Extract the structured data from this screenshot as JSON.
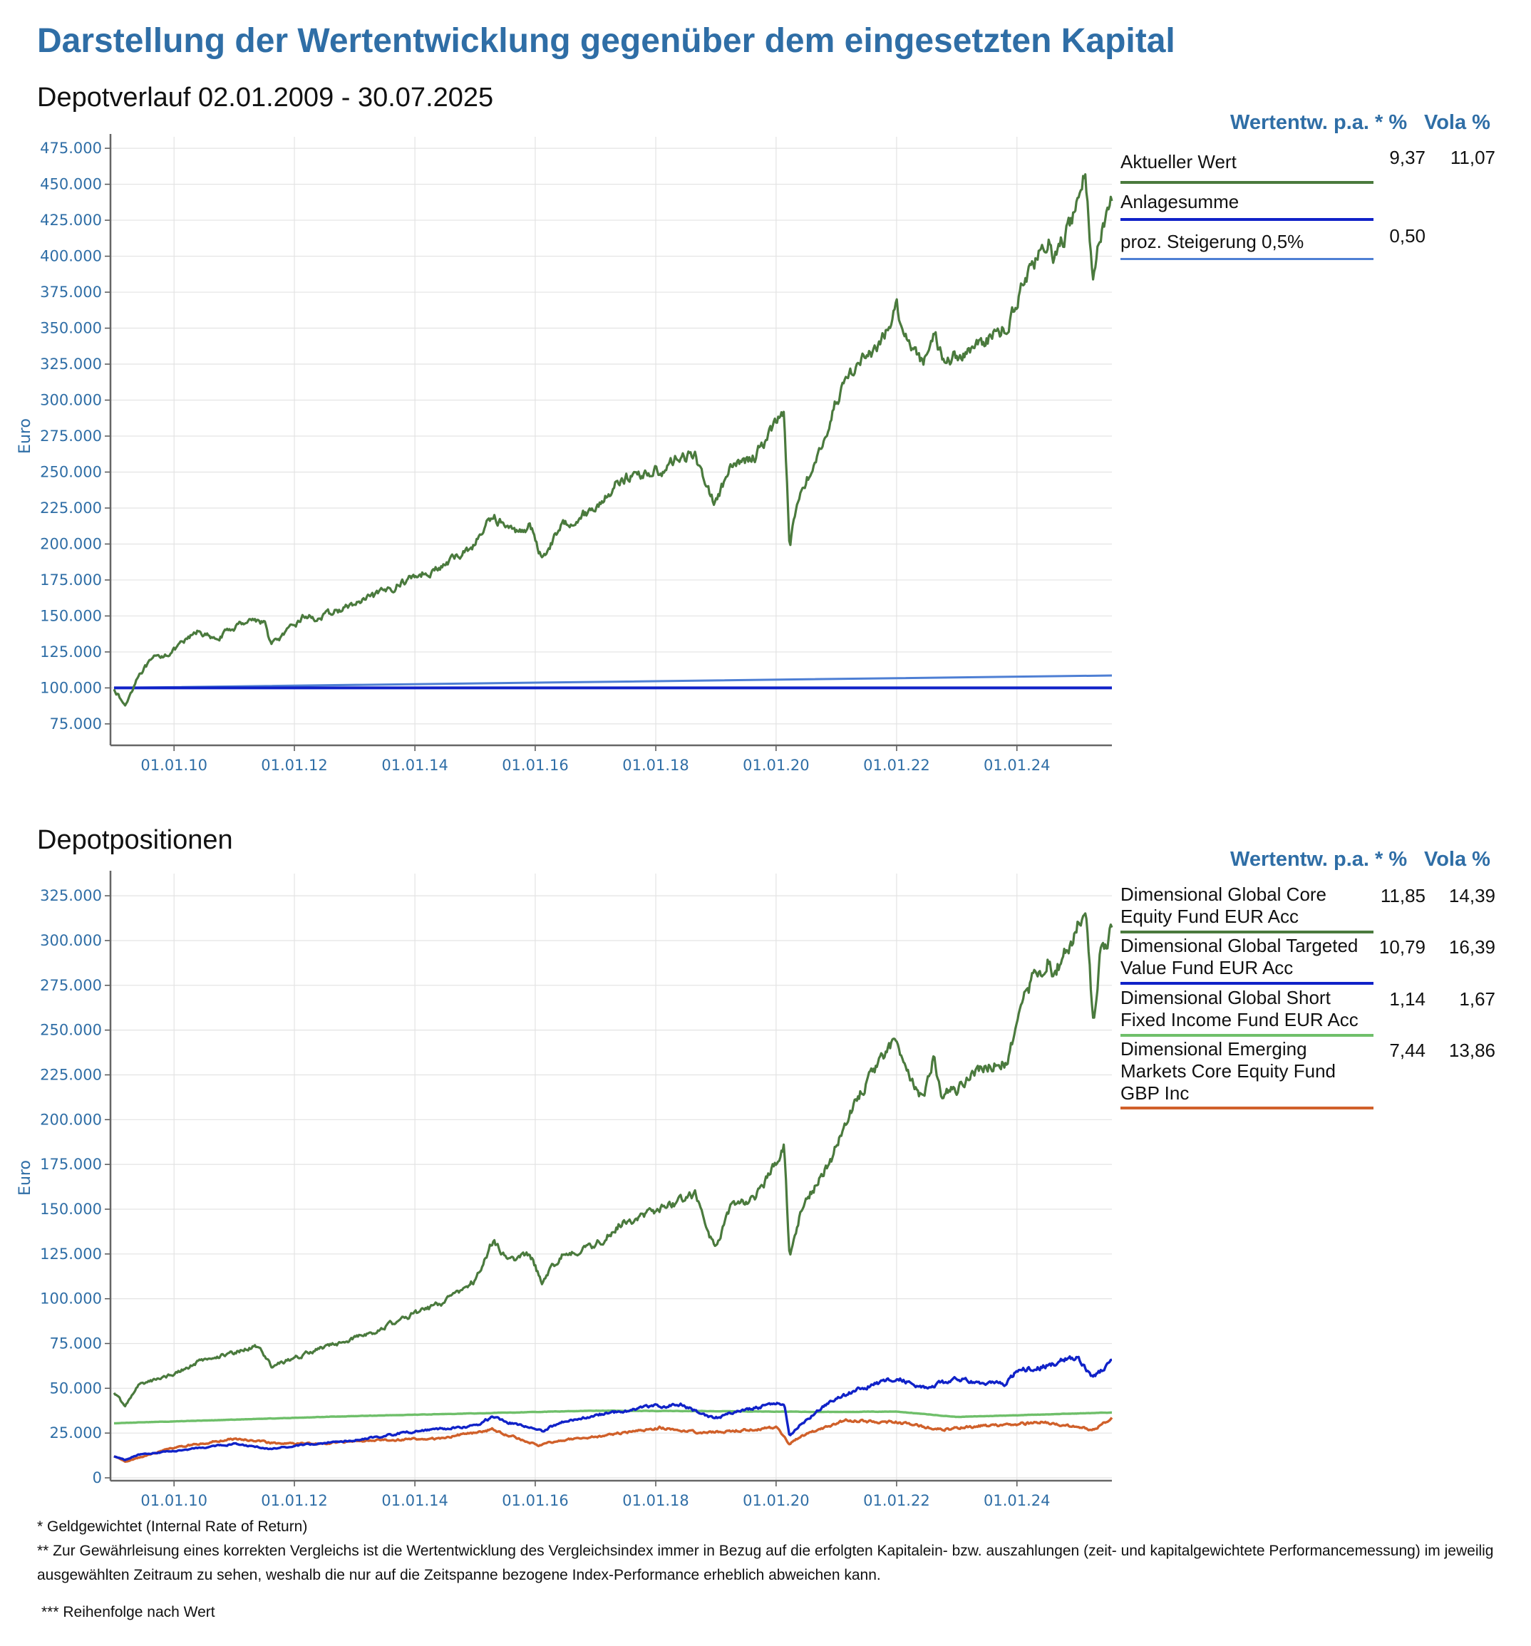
{
  "header": {
    "title": "Darstellung der Wertentwicklung gegenüber dem eingesetzten Kapital",
    "subtitle": "Depotverlauf 02.01.2009 - 30.07.2025",
    "section2_title": "Depotpositionen"
  },
  "legend_header": {
    "perf": "Wertentw. p.a. * %",
    "vola": "Vola %"
  },
  "chart_data": [
    {
      "type": "line",
      "title": "Depotverlauf 02.01.2009 - 30.07.2025",
      "ylabel": "Euro",
      "xlabel": "",
      "ylim": [
        70000,
        480000
      ],
      "xlim": [
        "2009-01-02",
        "2025-07-30"
      ],
      "x_ticks": [
        "01.01.10",
        "01.01.12",
        "01.01.14",
        "01.01.16",
        "01.01.18",
        "01.01.20",
        "01.01.22",
        "01.01.24"
      ],
      "y_ticks": [
        "75.000",
        "100.000",
        "125.000",
        "150.000",
        "175.000",
        "200.000",
        "225.000",
        "250.000",
        "275.000",
        "300.000",
        "325.000",
        "350.000",
        "375.000",
        "400.000",
        "425.000",
        "450.000",
        "475.000"
      ],
      "grid": true,
      "legend_position": "right",
      "series": [
        {
          "name": "Aktueller Wert",
          "color": "#4a7a3d",
          "perf": "9,37",
          "vola": "11,07",
          "x": [
            "2009-01-02",
            "2009-03-09",
            "2009-06-01",
            "2009-09-01",
            "2010-01-01",
            "2010-06-01",
            "2010-09-01",
            "2011-01-01",
            "2011-04-01",
            "2011-07-01",
            "2011-08-15",
            "2011-12-01",
            "2012-03-01",
            "2012-06-01",
            "2012-09-01",
            "2013-01-01",
            "2013-06-01",
            "2014-01-01",
            "2014-06-01",
            "2015-01-01",
            "2015-04-15",
            "2015-08-25",
            "2015-11-30",
            "2016-02-11",
            "2016-06-01",
            "2016-09-01",
            "2017-01-01",
            "2017-06-01",
            "2017-12-01",
            "2018-03-01",
            "2018-06-01",
            "2018-09-01",
            "2018-12-24",
            "2019-04-01",
            "2019-09-01",
            "2020-01-01",
            "2020-02-19",
            "2020-03-23",
            "2020-06-01",
            "2020-09-01",
            "2020-12-01",
            "2021-03-01",
            "2021-06-01",
            "2021-09-01",
            "2021-12-31",
            "2022-03-01",
            "2022-06-15",
            "2022-08-15",
            "2022-10-01",
            "2023-01-01",
            "2023-06-01",
            "2023-10-27",
            "2024-01-01",
            "2024-04-01",
            "2024-07-15",
            "2024-08-05",
            "2024-12-01",
            "2025-02-19",
            "2025-04-08",
            "2025-05-15",
            "2025-07-30"
          ],
          "y": [
            100000,
            87000,
            110000,
            120000,
            126000,
            140000,
            133000,
            142000,
            148000,
            146000,
            130000,
            140000,
            150000,
            148000,
            153000,
            158000,
            165000,
            178000,
            183000,
            200000,
            220000,
            208000,
            213000,
            190000,
            212000,
            218000,
            225000,
            245000,
            250000,
            252000,
            262000,
            260000,
            228000,
            252000,
            262000,
            285000,
            292000,
            200000,
            240000,
            255000,
            290000,
            315000,
            330000,
            332000,
            365000,
            345000,
            325000,
            350000,
            330000,
            330000,
            340000,
            350000,
            370000,
            395000,
            410000,
            395000,
            425000,
            460000,
            378000,
            415000,
            440000
          ]
        },
        {
          "name": "Anlagesumme",
          "color": "#1022c8",
          "perf": "",
          "vola": "",
          "x": [
            "2009-01-02",
            "2025-07-30"
          ],
          "y": [
            100000,
            100000
          ]
        },
        {
          "name": "proz. Steigerung 0,5%",
          "color": "#4e7fd4",
          "perf": "0,50",
          "vola": "",
          "x": [
            "2009-01-02",
            "2025-07-30"
          ],
          "y": [
            100000,
            108600
          ]
        }
      ]
    },
    {
      "type": "line",
      "title": "Depotpositionen",
      "ylabel": "Euro",
      "xlabel": "",
      "ylim": [
        0,
        335000
      ],
      "xlim": [
        "2009-01-02",
        "2025-07-30"
      ],
      "x_ticks": [
        "01.01.10",
        "01.01.12",
        "01.01.14",
        "01.01.16",
        "01.01.18",
        "01.01.20",
        "01.01.22",
        "01.01.24"
      ],
      "y_ticks": [
        "0",
        "25.000",
        "50.000",
        "75.000",
        "100.000",
        "125.000",
        "150.000",
        "175.000",
        "200.000",
        "225.000",
        "250.000",
        "275.000",
        "300.000",
        "325.000"
      ],
      "grid": true,
      "legend_position": "right",
      "series": [
        {
          "name": "Dimensional Global Core Equity Fund EUR Acc",
          "color": "#4a7a3d",
          "perf": "11,85",
          "vola": "14,39",
          "x": [
            "2009-01-02",
            "2009-03-09",
            "2009-06-01",
            "2010-01-01",
            "2010-06-01",
            "2011-01-01",
            "2011-06-01",
            "2011-08-15",
            "2012-01-01",
            "2012-06-01",
            "2013-01-01",
            "2013-06-01",
            "2014-01-01",
            "2014-06-01",
            "2015-01-01",
            "2015-04-15",
            "2015-08-25",
            "2015-11-30",
            "2016-02-11",
            "2016-06-01",
            "2017-01-01",
            "2017-06-01",
            "2017-12-01",
            "2018-06-01",
            "2018-09-01",
            "2018-12-24",
            "2019-04-01",
            "2019-09-01",
            "2020-01-01",
            "2020-02-19",
            "2020-03-23",
            "2020-06-01",
            "2020-12-01",
            "2021-03-01",
            "2021-06-01",
            "2021-12-31",
            "2022-03-01",
            "2022-06-15",
            "2022-08-15",
            "2022-10-01",
            "2023-01-01",
            "2023-06-01",
            "2023-10-27",
            "2024-01-01",
            "2024-04-01",
            "2024-07-15",
            "2024-08-05",
            "2024-12-01",
            "2025-02-19",
            "2025-04-08",
            "2025-05-15",
            "2025-07-30"
          ],
          "y": [
            48000,
            40000,
            52000,
            58000,
            65000,
            70000,
            74000,
            62000,
            67000,
            72000,
            78000,
            83000,
            92000,
            97000,
            110000,
            132000,
            120000,
            126000,
            108000,
            124000,
            130000,
            142000,
            148000,
            155000,
            158000,
            128000,
            150000,
            158000,
            175000,
            185000,
            122000,
            150000,
            178000,
            200000,
            215000,
            245000,
            230000,
            210000,
            235000,
            215000,
            218000,
            230000,
            232000,
            255000,
            278000,
            290000,
            280000,
            300000,
            320000,
            255000,
            290000,
            307000
          ]
        },
        {
          "name": "Dimensional Global Targeted Value Fund EUR Acc",
          "color": "#1022c8",
          "perf": "10,79",
          "vola": "16,39",
          "x": [
            "2009-01-02",
            "2009-03-09",
            "2009-06-01",
            "2010-01-01",
            "2011-01-01",
            "2011-08-15",
            "2012-01-01",
            "2013-01-01",
            "2014-01-01",
            "2015-01-01",
            "2015-04-15",
            "2015-08-25",
            "2016-02-11",
            "2016-06-01",
            "2017-01-01",
            "2018-01-01",
            "2018-06-01",
            "2018-12-24",
            "2019-06-01",
            "2020-01-01",
            "2020-02-19",
            "2020-03-23",
            "2020-06-01",
            "2020-12-01",
            "2021-06-01",
            "2022-01-01",
            "2022-06-15",
            "2023-01-01",
            "2023-10-27",
            "2024-01-01",
            "2024-06-01",
            "2025-01-01",
            "2025-04-08",
            "2025-07-30"
          ],
          "y": [
            12000,
            10000,
            13000,
            15000,
            19000,
            16000,
            18000,
            21000,
            26000,
            29000,
            34000,
            30000,
            26000,
            31000,
            35000,
            40000,
            41000,
            33000,
            38000,
            41000,
            42000,
            23000,
            30000,
            43000,
            50000,
            56000,
            50000,
            55000,
            52000,
            60000,
            62000,
            68000,
            56000,
            65000
          ]
        },
        {
          "name": "Dimensional Global Short Fixed Income Fund EUR Acc",
          "color": "#6fbf6a",
          "perf": "1,14",
          "vola": "1,67",
          "x": [
            "2009-01-02",
            "2011-01-01",
            "2013-01-01",
            "2015-01-01",
            "2017-01-01",
            "2019-01-01",
            "2021-01-01",
            "2022-01-01",
            "2023-01-01",
            "2025-07-30"
          ],
          "y": [
            30500,
            32500,
            34500,
            36000,
            37500,
            37200,
            36800,
            37000,
            34000,
            36500
          ]
        },
        {
          "name": "Dimensional Emerging Markets Core Equity Fund GBP Inc",
          "color": "#d0602a",
          "perf": "7,44",
          "vola": "13,86",
          "x": [
            "2009-01-02",
            "2009-03-09",
            "2010-01-01",
            "2011-01-01",
            "2011-10-01",
            "2012-06-01",
            "2013-06-01",
            "2014-06-01",
            "2015-04-15",
            "2016-01-20",
            "2016-06-01",
            "2017-01-01",
            "2018-01-26",
            "2018-10-01",
            "2020-01-01",
            "2020-03-23",
            "2020-06-01",
            "2021-02-17",
            "2022-01-01",
            "2022-10-01",
            "2023-06-01",
            "2024-06-01",
            "2025-04-08",
            "2025-07-30"
          ],
          "y": [
            12000,
            9000,
            17000,
            22000,
            19000,
            19000,
            21000,
            22000,
            27000,
            18000,
            21000,
            23000,
            28000,
            25000,
            28000,
            19000,
            23000,
            32000,
            31000,
            27000,
            29000,
            31000,
            27000,
            33000
          ]
        }
      ]
    }
  ],
  "footnotes": {
    "note1": "* Geldgewichtet (Internal Rate of Return)",
    "note2": "** Zur Gewährleisung eines korrekten Vergleichs ist die Wertentwicklung des Vergleichsindex immer in Bezug auf die erfolgten Kapitalein- bzw. auszahlungen (zeit- und kapitalgewichtete Performancemessung) im jeweilig ausgewählten Zeitraum zu sehen, weshalb die nur auf die Zeitspanne bezogene Index-Performance erheblich abweichen kann.",
    "note3": "*** Reihenfolge nach Wert"
  }
}
